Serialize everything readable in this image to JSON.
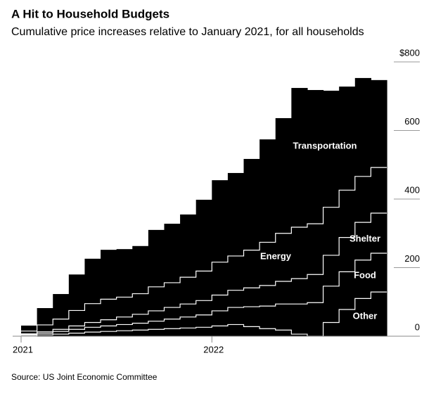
{
  "chart_data": {
    "type": "stacked-step-area",
    "title": "A Hit to Household Budgets",
    "subtitle": "Cumulative price increases relative to January 2021, for all households",
    "source": "Source: US Joint Economic Committee",
    "categories": [
      "2021",
      null,
      null,
      null,
      null,
      null,
      null,
      null,
      null,
      null,
      null,
      null,
      "2022",
      null,
      null,
      null,
      null,
      null,
      null,
      null,
      null,
      null,
      null
    ],
    "series": [
      {
        "name": "Other",
        "color": "#000000",
        "values": [
          2,
          4,
          6,
          9,
          12,
          14,
          16,
          18,
          20,
          22,
          24,
          26,
          30,
          34,
          28,
          22,
          18,
          6,
          0,
          40,
          78,
          110,
          129
        ]
      },
      {
        "name": "Food",
        "color": "#000000",
        "values": [
          3,
          5,
          8,
          11,
          14,
          16,
          18,
          20,
          24,
          28,
          32,
          36,
          44,
          50,
          58,
          66,
          76,
          88,
          98,
          106,
          110,
          112,
          113
        ]
      },
      {
        "name": "Shelter",
        "color": "#000000",
        "values": [
          2,
          4,
          6,
          10,
          14,
          18,
          22,
          26,
          30,
          34,
          38,
          42,
          46,
          50,
          55,
          60,
          66,
          74,
          82,
          90,
          100,
          110,
          117
        ]
      },
      {
        "name": "Energy",
        "color": "#000000",
        "values": [
          8,
          20,
          30,
          45,
          55,
          60,
          58,
          60,
          70,
          72,
          78,
          86,
          96,
          100,
          110,
          126,
          140,
          150,
          148,
          140,
          138,
          134,
          133
        ]
      },
      {
        "name": "Transportation",
        "color": "#000000",
        "values": [
          16,
          49,
          73,
          105,
          131,
          144,
          140,
          139,
          166,
          172,
          183,
          208,
          239,
          242,
          266,
          300,
          336,
          406,
          390,
          340,
          302,
          287,
          255
        ]
      }
    ],
    "ylim": [
      0,
      800
    ],
    "yticks": [
      0,
      200,
      400,
      600,
      {
        "value": 800,
        "label": "$800"
      }
    ]
  }
}
